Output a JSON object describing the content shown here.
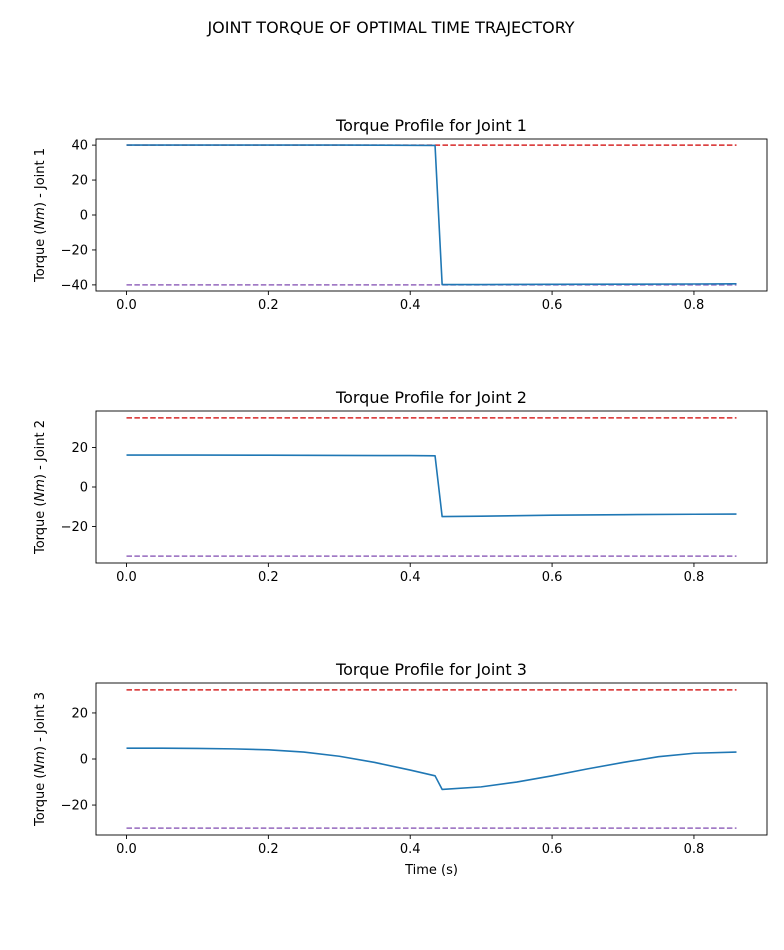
{
  "suptitle": "JOINT TORQUE OF OPTIMAL TIME TRAJECTORY",
  "colors": {
    "torque": "#1f77b4",
    "upper_limit": "#d62728",
    "lower_limit": "#9467bd"
  },
  "chart_data": [
    {
      "type": "line",
      "title": "Torque Profile for Joint 1",
      "ylabel_prefix": "Torque (",
      "ylabel_unit": "Nm",
      "ylabel_suffix": ") - Joint 1",
      "xlabel": "",
      "xlim": [
        -0.043,
        0.903
      ],
      "ylim": [
        -43.5,
        43.5
      ],
      "xticks": [
        0.0,
        0.2,
        0.4,
        0.6,
        0.8
      ],
      "xtick_labels": [
        "0.0",
        "0.2",
        "0.4",
        "0.6",
        "0.8"
      ],
      "yticks": [
        -40,
        -20,
        0,
        20,
        40
      ],
      "ytick_labels": [
        "−40",
        "−20",
        "0",
        "20",
        "40"
      ],
      "upper_limit": 40,
      "lower_limit": -40,
      "limit_x": [
        0.0,
        0.86
      ],
      "torque": {
        "x": [
          0.0,
          0.1,
          0.2,
          0.3,
          0.4,
          0.435,
          0.445,
          0.5,
          0.6,
          0.7,
          0.8,
          0.86
        ],
        "y": [
          40,
          40,
          40,
          40,
          39.9,
          39.8,
          -39.8,
          -39.8,
          -39.7,
          -39.6,
          -39.5,
          -39.4
        ]
      }
    },
    {
      "type": "line",
      "title": "Torque Profile for Joint 2",
      "ylabel_prefix": "Torque (",
      "ylabel_unit": "Nm",
      "ylabel_suffix": ") - Joint 2",
      "xlabel": "",
      "xlim": [
        -0.043,
        0.903
      ],
      "ylim": [
        -38.5,
        38.5
      ],
      "xticks": [
        0.0,
        0.2,
        0.4,
        0.6,
        0.8
      ],
      "xtick_labels": [
        "0.0",
        "0.2",
        "0.4",
        "0.6",
        "0.8"
      ],
      "yticks": [
        -20,
        0,
        20
      ],
      "ytick_labels": [
        "−20",
        "0",
        "20"
      ],
      "upper_limit": 35,
      "lower_limit": -35,
      "limit_x": [
        0.0,
        0.86
      ],
      "torque": {
        "x": [
          0.0,
          0.1,
          0.2,
          0.3,
          0.4,
          0.435,
          0.445,
          0.5,
          0.6,
          0.7,
          0.8,
          0.86
        ],
        "y": [
          16.2,
          16.2,
          16.1,
          16.0,
          15.9,
          15.8,
          -15.0,
          -14.8,
          -14.3,
          -14.0,
          -13.8,
          -13.7
        ]
      }
    },
    {
      "type": "line",
      "title": "Torque Profile for Joint 3",
      "ylabel_prefix": "Torque (",
      "ylabel_unit": "Nm",
      "ylabel_suffix": ") - Joint 3",
      "xlabel": "Time (s)",
      "xlim": [
        -0.043,
        0.903
      ],
      "ylim": [
        -33,
        33
      ],
      "xticks": [
        0.0,
        0.2,
        0.4,
        0.6,
        0.8
      ],
      "xtick_labels": [
        "0.0",
        "0.2",
        "0.4",
        "0.6",
        "0.8"
      ],
      "yticks": [
        -20,
        0,
        20
      ],
      "ytick_labels": [
        "−20",
        "0",
        "20"
      ],
      "upper_limit": 30,
      "lower_limit": -30,
      "limit_x": [
        0.0,
        0.86
      ],
      "torque": {
        "x": [
          0.0,
          0.05,
          0.1,
          0.15,
          0.2,
          0.25,
          0.3,
          0.35,
          0.4,
          0.435,
          0.445,
          0.5,
          0.55,
          0.6,
          0.65,
          0.7,
          0.75,
          0.8,
          0.86
        ],
        "y": [
          4.7,
          4.7,
          4.6,
          4.4,
          4.0,
          3.0,
          1.2,
          -1.5,
          -4.8,
          -7.3,
          -13.2,
          -12.1,
          -10.0,
          -7.3,
          -4.3,
          -1.5,
          1.0,
          2.5,
          3.0
        ]
      }
    }
  ]
}
